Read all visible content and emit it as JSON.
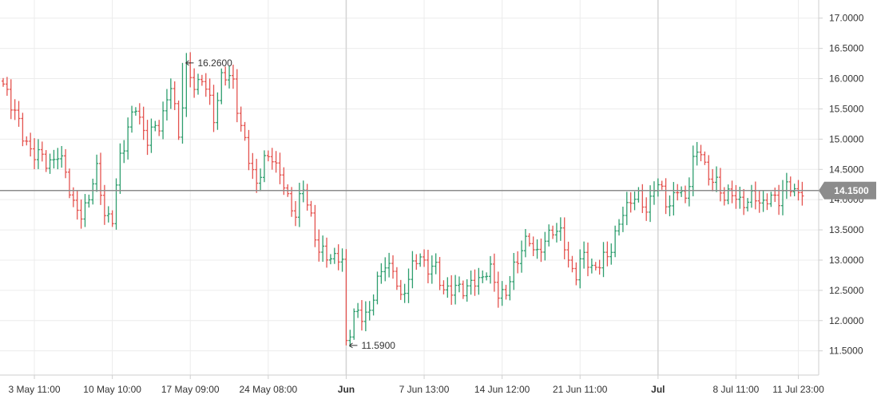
{
  "chart_data": {
    "type": "bar",
    "style": "ohlc",
    "colors": {
      "up": "#2e9e6e",
      "down": "#e4534f",
      "grid": "#ececec",
      "last_line": "#8c8c8c",
      "last_badge": "#8c8c8c",
      "axis": "#cfcfcf"
    },
    "y_axis": {
      "position": "right",
      "ylim": [
        11.1,
        17.3
      ],
      "ticks": [
        "11.5000",
        "12.0000",
        "12.5000",
        "13.0000",
        "13.5000",
        "14.0000",
        "14.5000",
        "15.0000",
        "15.5000",
        "16.0000",
        "16.5000",
        "17.0000"
      ]
    },
    "x_axis": {
      "labels": [
        "3 May 11:00",
        "10 May 10:00",
        "17 May 09:00",
        "24 May 08:00",
        "Jun",
        "7 Jun 13:00",
        "14 Jun 12:00",
        "21 Jun 11:00",
        "Jul",
        "8 Jul 11:00",
        "11 Jul 23:00"
      ],
      "label_bar_index": [
        8,
        28,
        48,
        68,
        88,
        108,
        128,
        148,
        168,
        188,
        204
      ],
      "bold": [
        false,
        false,
        false,
        false,
        true,
        false,
        false,
        false,
        true,
        false,
        false
      ]
    },
    "grid": true,
    "legend": "none",
    "last_price": {
      "value": 14.15,
      "label": "14.1500"
    },
    "annotations": [
      {
        "label": "16.2600",
        "value": 16.26,
        "bar_index": 46
      },
      {
        "label": "11.5900",
        "value": 11.59,
        "bar_index": 88
      }
    ],
    "month_separators": [
      88,
      168
    ],
    "anchors": [
      [
        0,
        15.85
      ],
      [
        3,
        15.5
      ],
      [
        5,
        15.0
      ],
      [
        8,
        14.78
      ],
      [
        11,
        14.62
      ],
      [
        14,
        14.7
      ],
      [
        16,
        14.5
      ],
      [
        18,
        13.9
      ],
      [
        20,
        13.7
      ],
      [
        22,
        14.1
      ],
      [
        24,
        14.45
      ],
      [
        26,
        13.8
      ],
      [
        28,
        13.65
      ],
      [
        30,
        14.7
      ],
      [
        32,
        15.2
      ],
      [
        34,
        15.5
      ],
      [
        37,
        15.0
      ],
      [
        40,
        15.25
      ],
      [
        43,
        15.85
      ],
      [
        45,
        15.1
      ],
      [
        47,
        16.15
      ],
      [
        49,
        15.85
      ],
      [
        51,
        16.05
      ],
      [
        54,
        15.35
      ],
      [
        56,
        16.05
      ],
      [
        59,
        15.95
      ],
      [
        61,
        15.2
      ],
      [
        63,
        14.65
      ],
      [
        65,
        14.3
      ],
      [
        67,
        14.6
      ],
      [
        69,
        14.75
      ],
      [
        71,
        14.4
      ],
      [
        73,
        14.0
      ],
      [
        75,
        13.8
      ],
      [
        77,
        14.15
      ],
      [
        79,
        13.75
      ],
      [
        81,
        13.1
      ],
      [
        83,
        13.1
      ],
      [
        85,
        13.05
      ],
      [
        87,
        12.95
      ],
      [
        88,
        11.65
      ],
      [
        90,
        12.1
      ],
      [
        92,
        12.05
      ],
      [
        94,
        12.2
      ],
      [
        96,
        12.6
      ],
      [
        98,
        13.0
      ],
      [
        100,
        12.8
      ],
      [
        102,
        12.35
      ],
      [
        104,
        12.75
      ],
      [
        106,
        12.95
      ],
      [
        107,
        13.1
      ],
      [
        109,
        12.85
      ],
      [
        111,
        12.85
      ],
      [
        113,
        12.55
      ],
      [
        115,
        12.45
      ],
      [
        117,
        12.6
      ],
      [
        119,
        12.5
      ],
      [
        121,
        12.65
      ],
      [
        123,
        12.75
      ],
      [
        125,
        12.8
      ],
      [
        127,
        12.5
      ],
      [
        129,
        12.4
      ],
      [
        131,
        12.9
      ],
      [
        133,
        13.2
      ],
      [
        135,
        13.3
      ],
      [
        137,
        13.15
      ],
      [
        139,
        13.25
      ],
      [
        141,
        13.55
      ],
      [
        143,
        13.45
      ],
      [
        145,
        12.95
      ],
      [
        147,
        12.8
      ],
      [
        149,
        13.05
      ],
      [
        151,
        12.9
      ],
      [
        153,
        12.9
      ],
      [
        155,
        13.1
      ],
      [
        157,
        13.4
      ],
      [
        159,
        13.75
      ],
      [
        161,
        14.05
      ],
      [
        163,
        14.0
      ],
      [
        165,
        13.85
      ],
      [
        167,
        14.2
      ],
      [
        169,
        14.15
      ],
      [
        171,
        13.9
      ],
      [
        173,
        14.15
      ],
      [
        175,
        14.05
      ],
      [
        177,
        14.6
      ],
      [
        179,
        14.85
      ],
      [
        181,
        14.35
      ],
      [
        183,
        14.25
      ],
      [
        185,
        14.1
      ],
      [
        187,
        14.05
      ],
      [
        189,
        14.0
      ],
      [
        191,
        13.95
      ],
      [
        193,
        14.05
      ],
      [
        195,
        13.95
      ],
      [
        197,
        14.0
      ],
      [
        199,
        14.05
      ],
      [
        201,
        14.2
      ],
      [
        203,
        14.15
      ],
      [
        205,
        14.15
      ]
    ]
  }
}
